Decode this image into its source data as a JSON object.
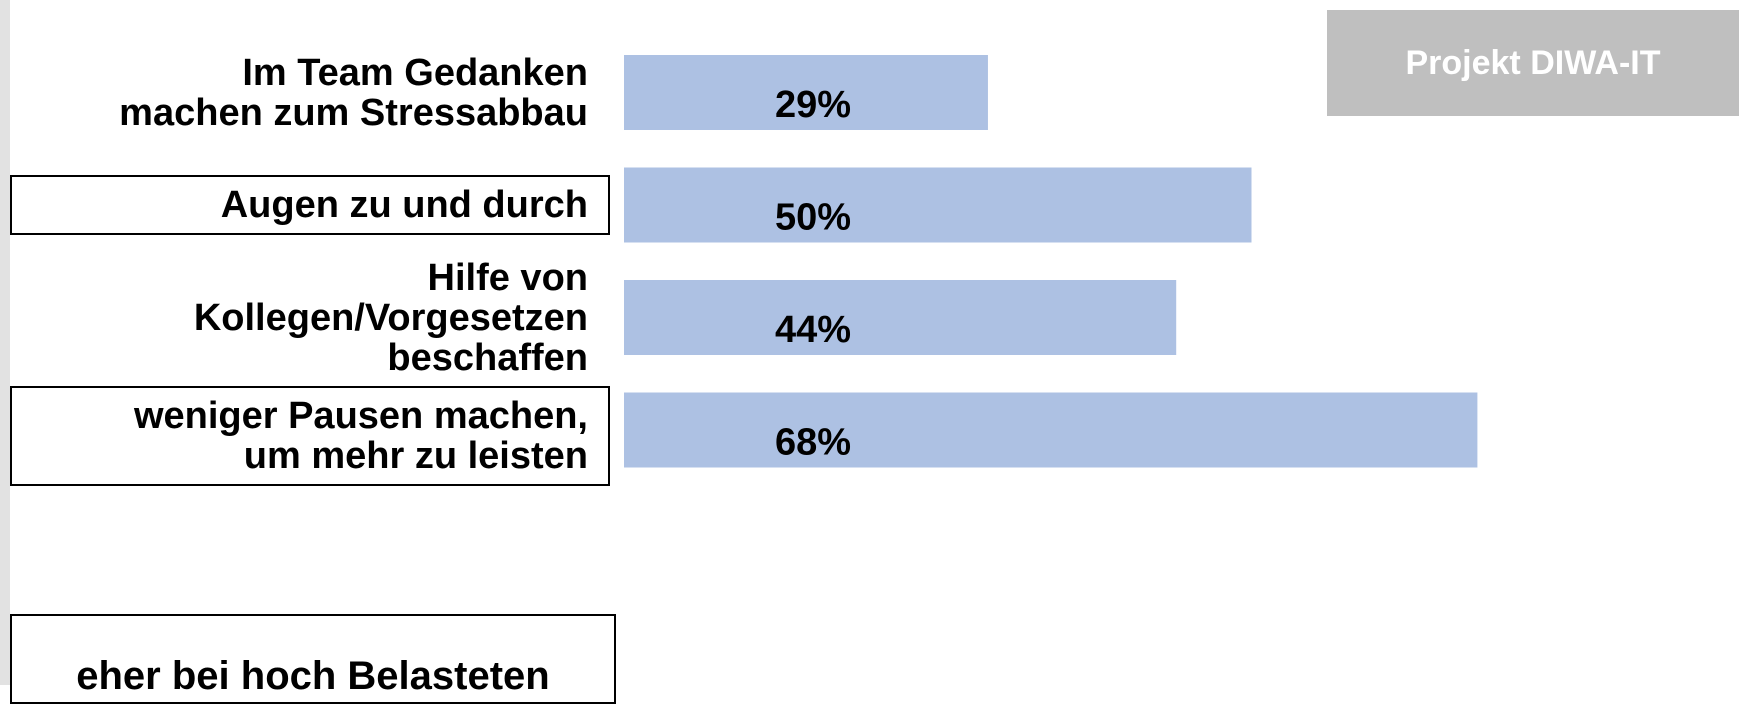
{
  "chart_data": {
    "type": "hbar",
    "categories": [
      "Im Team Gedanken\nmachen zum Stressabbau",
      "Augen zu und durch",
      "Hilfe von\nKollegen/Vorgesetzen\nbeschaffen",
      "weniger Pausen machen,\num mehr zu leisten"
    ],
    "values": [
      29,
      50,
      44,
      68
    ],
    "value_labels": [
      "29%",
      "50%",
      "44%",
      "68%"
    ],
    "color": "#adc1e3",
    "xlim": [
      0,
      100
    ],
    "boxed": [
      false,
      true,
      false,
      true
    ],
    "note": "eher bei hoch Belasteten",
    "badge": "Projekt DIWA-IT"
  }
}
